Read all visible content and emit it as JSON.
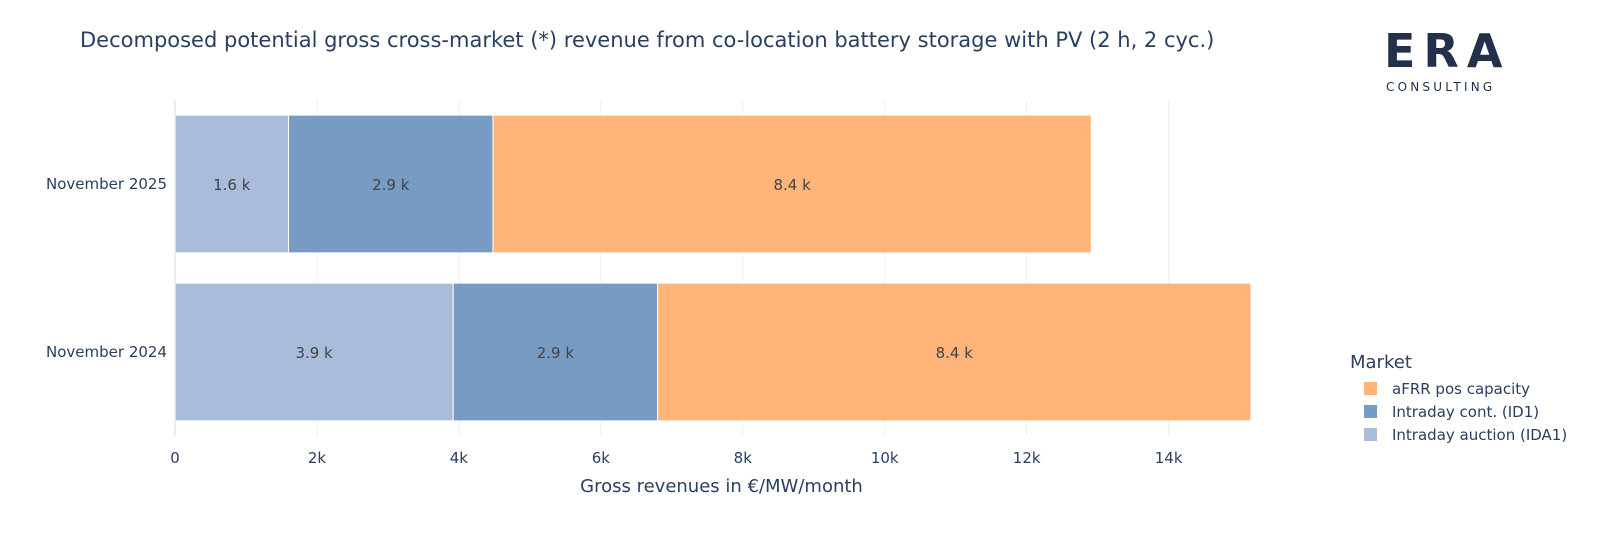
{
  "chart_data": {
    "type": "bar",
    "orientation": "horizontal",
    "stacked": true,
    "title": "Decomposed potential gross cross-market (*) revenue from co-location battery storage with PV (2 h, 2 cyc.)",
    "xlabel": "Gross revenues in €/MW/month",
    "ylabel": "",
    "xlim": [
      0,
      15400
    ],
    "x_ticks": [
      0,
      2000,
      4000,
      6000,
      8000,
      10000,
      12000,
      14000
    ],
    "x_tick_labels": [
      "0",
      "2k",
      "4k",
      "6k",
      "8k",
      "10k",
      "12k",
      "14k"
    ],
    "grid": true,
    "categories": [
      "November 2025",
      "November 2024"
    ],
    "series": [
      {
        "name": "Intraday auction (IDA1)",
        "color": "#a9bcd9",
        "values": [
          1600,
          3920
        ],
        "labels": [
          "1.6 k",
          "3.9 k"
        ]
      },
      {
        "name": "Intraday cont. (ID1)",
        "color": "#779bc3",
        "values": [
          2880,
          2880
        ],
        "labels": [
          "2.9 k",
          "2.9 k"
        ]
      },
      {
        "name": "aFRR pos capacity",
        "color": "#ffb47a",
        "values": [
          8430,
          8360
        ],
        "labels": [
          "8.4 k",
          "8.4 k"
        ]
      }
    ],
    "legend": {
      "title": "Market",
      "position": "right",
      "order": [
        "aFRR pos capacity",
        "Intraday cont. (ID1)",
        "Intraday auction (IDA1)"
      ]
    }
  },
  "logo": {
    "word": "ERA",
    "sub": "CONSULTING"
  }
}
